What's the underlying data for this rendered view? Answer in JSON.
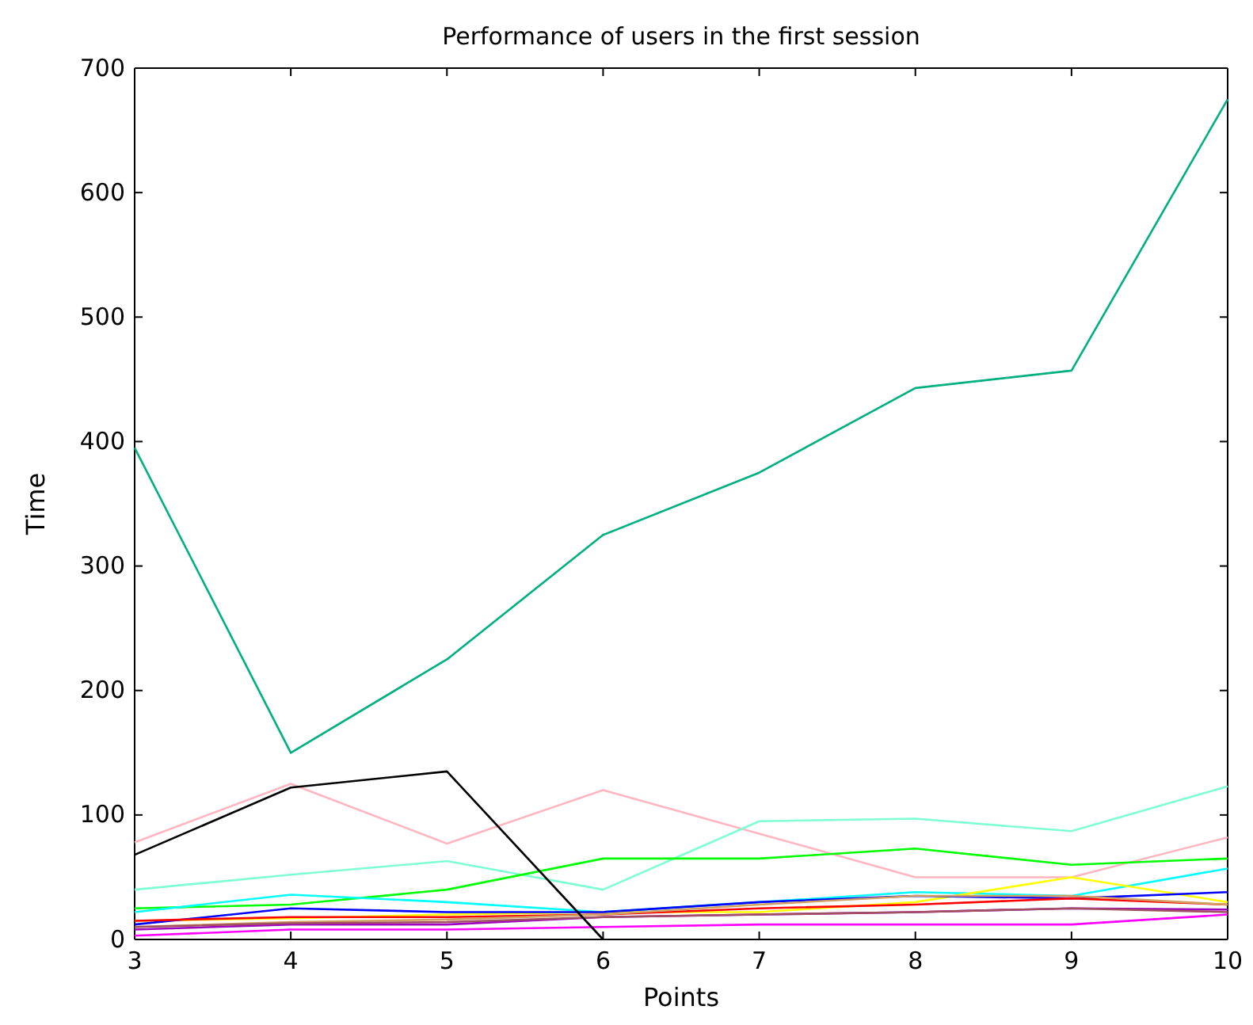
{
  "chart_data": {
    "type": "line",
    "title": "Performance of users in the first session",
    "xlabel": "Points",
    "ylabel": "Time",
    "x": [
      3,
      4,
      5,
      6,
      7,
      8,
      9,
      10
    ],
    "xlim": [
      3,
      10
    ],
    "xticks": [
      3,
      4,
      5,
      6,
      7,
      8,
      9,
      10
    ],
    "ylim": [
      0,
      700
    ],
    "yticks": [
      0,
      100,
      200,
      300,
      400,
      500,
      600,
      700
    ],
    "series": [
      {
        "color": "#00b080",
        "values": [
          395,
          150,
          225,
          325,
          375,
          443,
          457,
          675
        ]
      },
      {
        "color": "#ffb6c1",
        "values": [
          78,
          125,
          77,
          120,
          85,
          50,
          50,
          82
        ]
      },
      {
        "color": "#7fffd4",
        "values": [
          40,
          52,
          63,
          40,
          95,
          97,
          87,
          123
        ]
      },
      {
        "color": "#00ff00",
        "values": [
          25,
          28,
          40,
          65,
          65,
          73,
          60,
          65
        ]
      },
      {
        "color": "#00ffff",
        "values": [
          22,
          36,
          30,
          22,
          30,
          38,
          35,
          57
        ]
      },
      {
        "color": "#ffff00",
        "values": [
          15,
          17,
          20,
          22,
          22,
          30,
          50,
          30
        ]
      },
      {
        "color": "#0000ff",
        "values": [
          12,
          25,
          22,
          22,
          30,
          35,
          33,
          38
        ]
      },
      {
        "color": "#ff0000",
        "values": [
          15,
          18,
          18,
          20,
          25,
          28,
          33,
          28
        ]
      },
      {
        "color": "#d2a060",
        "values": [
          10,
          14,
          16,
          20,
          28,
          35,
          35,
          28
        ]
      },
      {
        "color": "#a000c0",
        "values": [
          8,
          12,
          12,
          18,
          20,
          22,
          25,
          24
        ]
      },
      {
        "color": "#a05060",
        "values": [
          10,
          13,
          14,
          18,
          20,
          22,
          25,
          22
        ]
      },
      {
        "color": "#ff00ff",
        "values": [
          3,
          8,
          8,
          10,
          12,
          12,
          12,
          20
        ]
      },
      {
        "color": "#000000",
        "values": [
          68,
          122,
          135,
          0,
          null,
          null,
          null,
          null
        ]
      }
    ]
  }
}
